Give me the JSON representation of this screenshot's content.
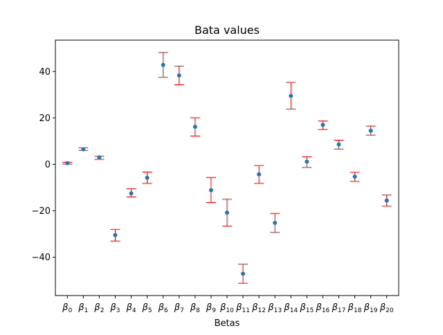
{
  "chart_data": {
    "type": "scatter",
    "title": "Bata values",
    "xlabel": "Betas",
    "ylabel": "",
    "ylim": [
      -56.5,
      53.5
    ],
    "yticks": [
      -40,
      -20,
      0,
      20,
      40
    ],
    "marker_color": "#1f77b4",
    "errorbar_color": "#ff0000",
    "categories": [
      {
        "base": "β",
        "sub": "0"
      },
      {
        "base": "β",
        "sub": "1"
      },
      {
        "base": "β",
        "sub": "2"
      },
      {
        "base": "β",
        "sub": "3"
      },
      {
        "base": "β",
        "sub": "4"
      },
      {
        "base": "β",
        "sub": "5"
      },
      {
        "base": "β",
        "sub": "6"
      },
      {
        "base": "β",
        "sub": "7"
      },
      {
        "base": "β",
        "sub": "8"
      },
      {
        "base": "β",
        "sub": "9"
      },
      {
        "base": "β",
        "sub": "10"
      },
      {
        "base": "β",
        "sub": "11"
      },
      {
        "base": "β",
        "sub": "12"
      },
      {
        "base": "β",
        "sub": "13"
      },
      {
        "base": "β",
        "sub": "14"
      },
      {
        "base": "β",
        "sub": "15"
      },
      {
        "base": "β",
        "sub": "16"
      },
      {
        "base": "β",
        "sub": "17"
      },
      {
        "base": "β",
        "sub": "18"
      },
      {
        "base": "β",
        "sub": "19"
      },
      {
        "base": "β",
        "sub": "20"
      }
    ],
    "values": [
      0.5,
      6.5,
      3.0,
      -30.5,
      -12.5,
      -5.8,
      42.8,
      38.3,
      16.2,
      -11.1,
      -20.8,
      -47.1,
      -4.3,
      -25.2,
      29.5,
      1.2,
      17.0,
      8.6,
      -5.3,
      14.5,
      -15.6
    ],
    "error_low": [
      0.1,
      6.0,
      2.2,
      -33.0,
      -14.0,
      -8.2,
      37.5,
      34.3,
      12.2,
      -16.4,
      -26.6,
      -51.2,
      -8.2,
      -29.3,
      23.8,
      -1.3,
      15.0,
      6.6,
      -7.3,
      12.6,
      -18.0
    ],
    "error_high": [
      0.9,
      7.1,
      3.5,
      -28.0,
      -10.5,
      -3.3,
      48.2,
      42.3,
      20.1,
      -5.6,
      -15.0,
      -43.0,
      -0.5,
      -21.1,
      35.3,
      3.3,
      18.7,
      10.4,
      -3.4,
      16.5,
      -13.2
    ]
  }
}
